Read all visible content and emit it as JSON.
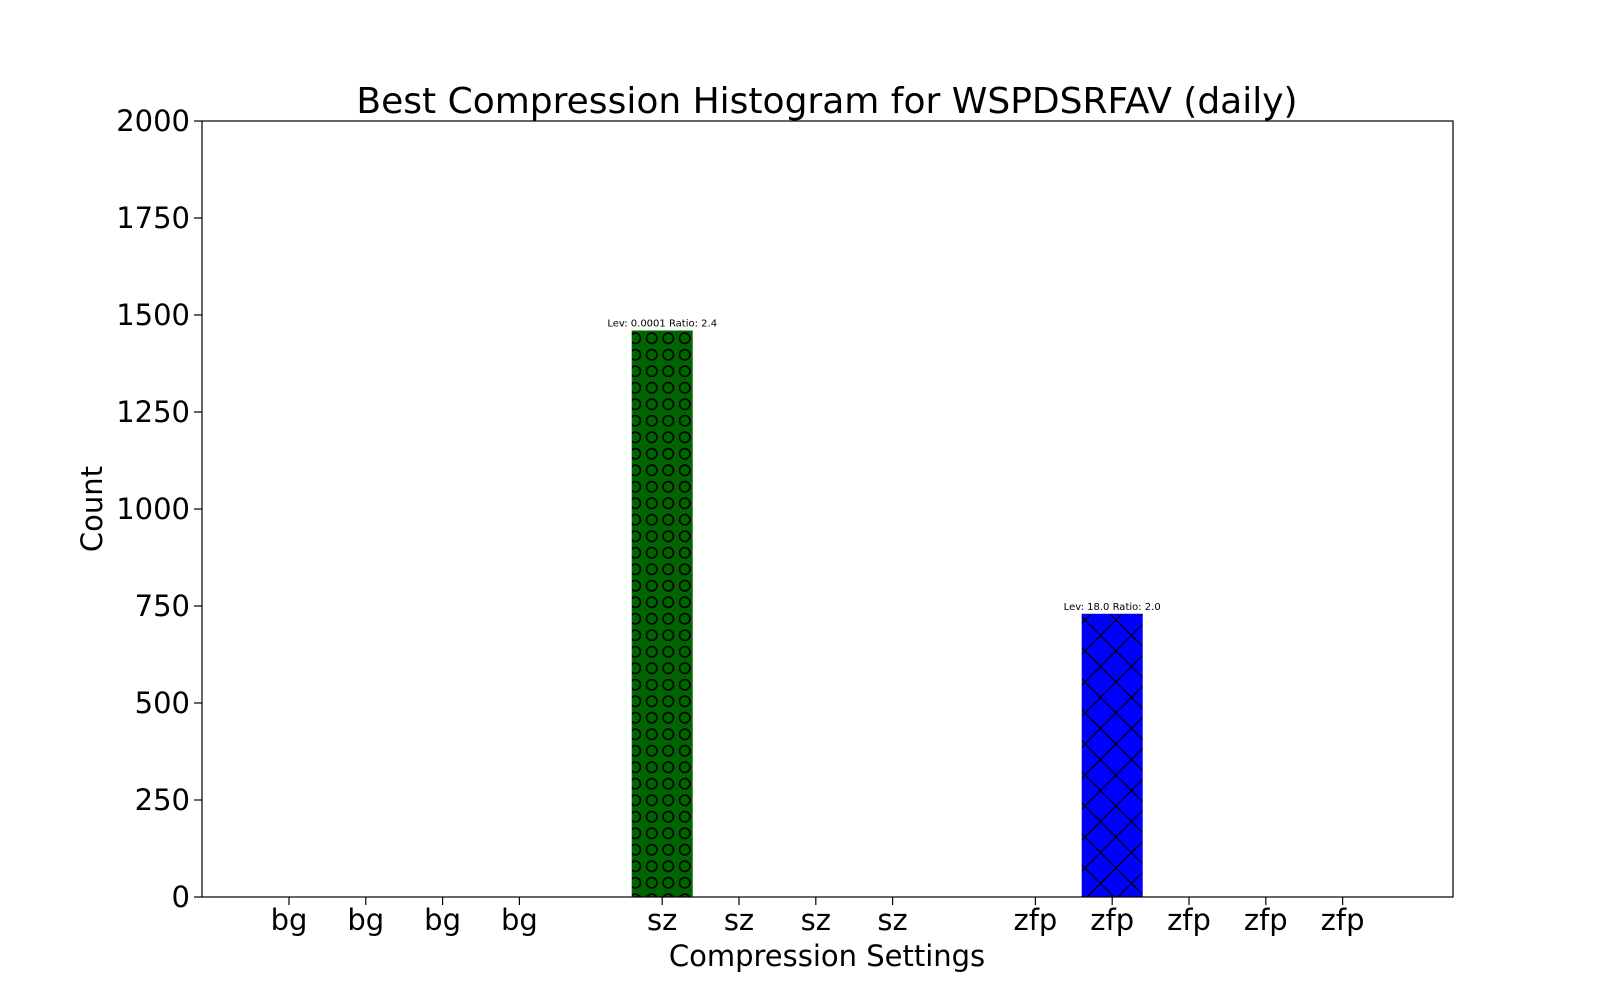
{
  "chart_data": {
    "type": "bar",
    "title": "Best Compression Histogram for WSPDSRFAV (daily)",
    "xlabel": "Compression Settings",
    "ylabel": "Count",
    "ylim": [
      0,
      2000
    ],
    "yticks": [
      0,
      250,
      500,
      750,
      1000,
      1250,
      1500,
      1750,
      2000
    ],
    "categories": [
      "bg",
      "bg",
      "bg",
      "bg",
      "sz",
      "sz",
      "sz",
      "sz",
      "zfp",
      "zfp",
      "zfp",
      "zfp",
      "zfp"
    ],
    "values": [
      0,
      0,
      0,
      0,
      1460,
      0,
      0,
      0,
      0,
      730,
      0,
      0,
      0
    ],
    "bar_colors": [
      "#008000",
      "#008000",
      "#008000",
      "#008000",
      "#006400",
      "#006400",
      "#006400",
      "#006400",
      "#0000ff",
      "#0000ff",
      "#0000ff",
      "#0000ff",
      "#0000ff"
    ],
    "bar_patterns": [
      "none",
      "none",
      "none",
      "none",
      "circles",
      "none",
      "none",
      "none",
      "none",
      "crosshatch",
      "none",
      "none",
      "none"
    ],
    "bar_labels": [
      "",
      "",
      "",
      "",
      "Lev: 0.0001 Ratio: 2.4",
      "",
      "",
      "",
      "",
      "Lev: 18.0 Ratio: 2.0",
      "",
      "",
      ""
    ],
    "grid": false,
    "legend": "none"
  }
}
